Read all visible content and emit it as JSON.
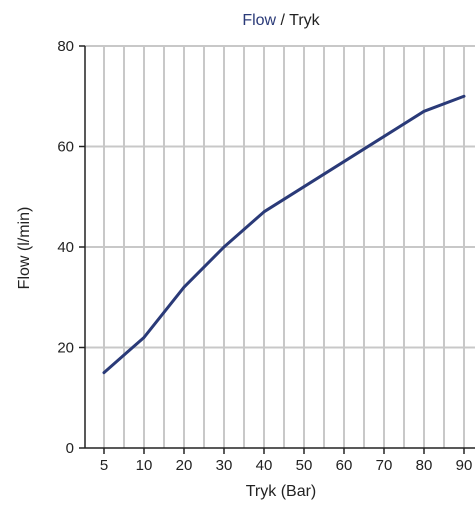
{
  "chart_data": {
    "type": "line",
    "title_parts": [
      {
        "text": "Flow",
        "color": "#2a3a78"
      },
      {
        "text": " / Tryk",
        "color": "#222222"
      }
    ],
    "xlabel": "Tryk (Bar)",
    "ylabel": "Flow (l/min)",
    "x_ticks": [
      "5",
      "10",
      "20",
      "30",
      "40",
      "50",
      "60",
      "70",
      "80",
      "90"
    ],
    "y_ticks": [
      0,
      20,
      40,
      60,
      80
    ],
    "ylim": [
      0,
      80
    ],
    "grid": true,
    "series": [
      {
        "color": "#2a3a78",
        "x": [
          "5",
          "10",
          "20",
          "30",
          "40",
          "50",
          "60",
          "70",
          "80",
          "90"
        ],
        "values": [
          15,
          22,
          32,
          40,
          47,
          52,
          57,
          62,
          67,
          70
        ]
      }
    ]
  }
}
